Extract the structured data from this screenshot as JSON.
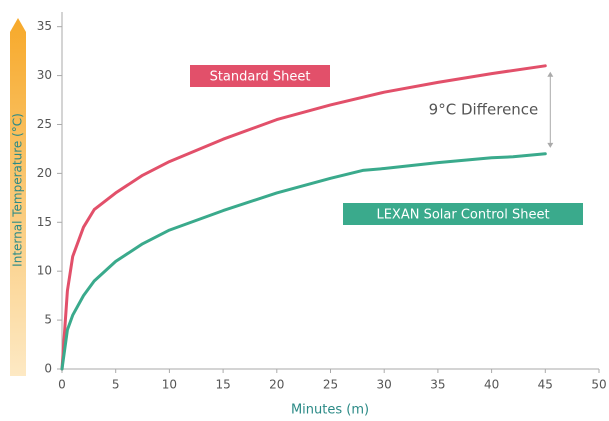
{
  "chart_data": {
    "type": "line",
    "xlabel": "Minutes (m)",
    "ylabel": "Internal Temperature (°C)",
    "annotation": "9°C Difference",
    "xlim": [
      0,
      50
    ],
    "xticks": [
      0,
      5,
      10,
      15,
      20,
      25,
      30,
      35,
      40,
      45,
      50
    ],
    "ylim": [
      0,
      36.5
    ],
    "yticks": [
      0,
      5,
      10,
      15,
      20,
      25,
      30,
      35
    ],
    "grid": false,
    "series": [
      {
        "name": "Standard Sheet",
        "color": "#e2506a",
        "x": [
          0,
          0.5,
          1,
          2,
          3,
          5,
          7.5,
          10,
          15,
          20,
          25,
          30,
          35,
          40,
          45
        ],
        "values": [
          0,
          8,
          11.5,
          14.5,
          16.3,
          18,
          19.8,
          21.2,
          23.5,
          25.5,
          27,
          28.3,
          29.3,
          30.2,
          31
        ]
      },
      {
        "name": "LEXAN Solar Control Sheet",
        "color": "#3aaa8c",
        "x": [
          0,
          0.5,
          1,
          2,
          3,
          5,
          7.5,
          10,
          15,
          20,
          25,
          28,
          30,
          35,
          40,
          42,
          45
        ],
        "values": [
          0,
          4,
          5.5,
          7.5,
          9,
          11,
          12.8,
          14.2,
          16.2,
          18,
          19.5,
          20.3,
          20.5,
          21.1,
          21.6,
          21.7,
          22
        ]
      }
    ]
  }
}
